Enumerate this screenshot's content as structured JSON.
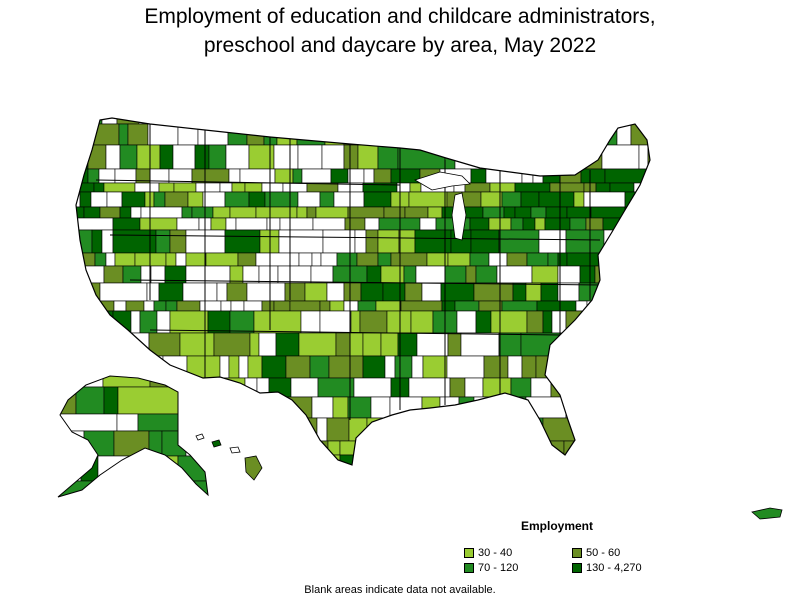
{
  "title": {
    "line1": "Employment of education and childcare administrators,",
    "line2": "preschool and daycare by area, May 2022"
  },
  "legend": {
    "title": "Employment",
    "items": [
      {
        "label": "30 - 40",
        "color": "#9acd32"
      },
      {
        "label": "50 - 60",
        "color": "#6b8e23"
      },
      {
        "label": "70 - 120",
        "color": "#228b22"
      },
      {
        "label": "130 - 4,270",
        "color": "#006400"
      }
    ]
  },
  "footnote": "Blank areas indicate data not available.",
  "colors": {
    "no_data": "#ffffff",
    "border": "#000000"
  }
}
